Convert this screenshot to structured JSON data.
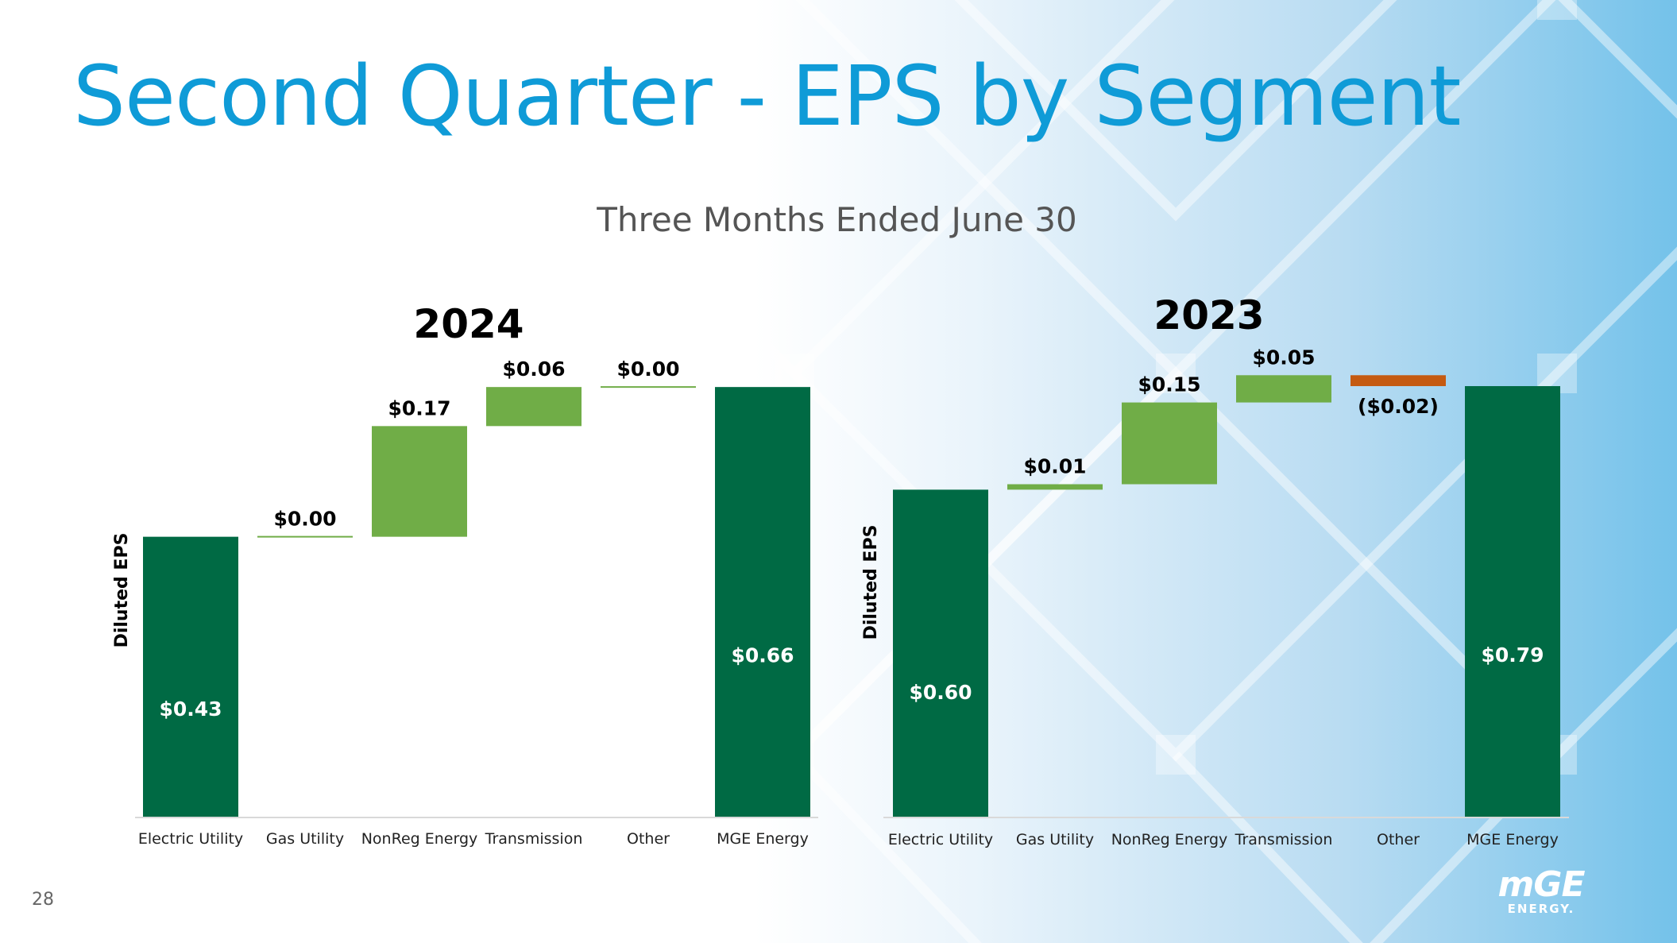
{
  "slide": {
    "title": "Second Quarter - EPS by Segment",
    "subtitle": "Three Months Ended June 30",
    "page_number": "28",
    "logo": {
      "main": "mGE",
      "sub": "ENERGY."
    }
  },
  "colors": {
    "title_blue": "#0f9bd7",
    "total_green": "#006a44",
    "increase_green": "#70ad47",
    "decrease_orange": "#c55a11"
  },
  "chart_data": [
    {
      "type": "waterfall",
      "title": "2024",
      "ylabel": "Diluted EPS",
      "xlabel": "",
      "ylim": [
        0,
        0.72
      ],
      "categories": [
        "Electric Utility",
        "Gas Utility",
        "NonReg Energy",
        "Transmission",
        "Other",
        "MGE Energy"
      ],
      "values": [
        0.43,
        0.0,
        0.17,
        0.06,
        0.0,
        0.66
      ],
      "kinds": [
        "total",
        "delta",
        "delta",
        "delta",
        "delta",
        "total"
      ],
      "labels": [
        "$0.43",
        "$0.00",
        "$0.17",
        "$0.06",
        "$0.00",
        "$0.66"
      ]
    },
    {
      "type": "waterfall",
      "title": "2023",
      "ylabel": "Diluted EPS",
      "xlabel": "",
      "ylim": [
        0,
        0.86
      ],
      "categories": [
        "Electric Utility",
        "Gas Utility",
        "NonReg Energy",
        "Transmission",
        "Other",
        "MGE Energy"
      ],
      "values": [
        0.6,
        0.01,
        0.15,
        0.05,
        -0.02,
        0.79
      ],
      "kinds": [
        "total",
        "delta",
        "delta",
        "delta",
        "delta",
        "total"
      ],
      "labels": [
        "$0.60",
        "$0.01",
        "$0.15",
        "$0.05",
        "($0.02)",
        "$0.79"
      ]
    }
  ]
}
